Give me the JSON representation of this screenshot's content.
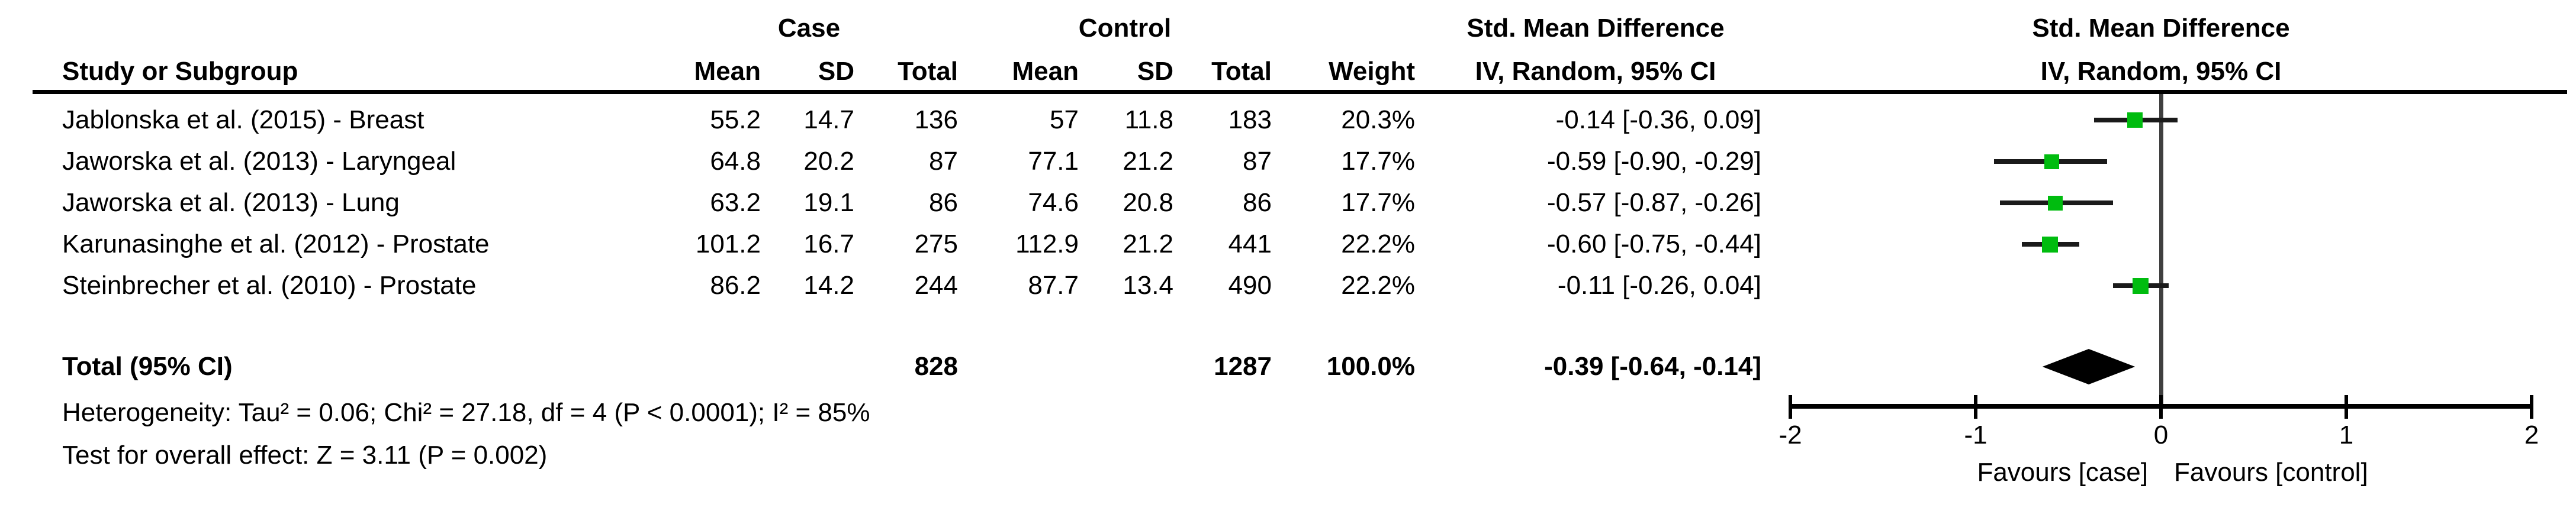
{
  "table": {
    "headers": {
      "study": "Study or Subgroup",
      "case_group": "Case",
      "control_group": "Control",
      "mean": "Mean",
      "sd": "SD",
      "total": "Total",
      "weight": "Weight",
      "smd_title": "Std. Mean Difference",
      "smd_method": "IV, Random, 95% CI"
    },
    "total_row": {
      "label": "Total (95% CI)",
      "case_total": "828",
      "control_total": "1287",
      "weight": "100.0%",
      "smd_ci": "-0.39 [-0.64, -0.14]"
    },
    "footnotes": {
      "heterogeneity": "Heterogeneity: Tau² = 0.06; Chi² = 27.18, df = 4 (P < 0.0001); I² = 85%",
      "overall_effect": "Test for overall effect: Z = 3.11 (P = 0.002)"
    }
  },
  "chart_data": {
    "type": "forest",
    "effect_measure": "Std. Mean Difference",
    "model": "IV, Random, 95% CI",
    "studies": [
      {
        "name": "Jablonska et al. (2015) - Breast",
        "case_mean": "55.2",
        "case_sd": "14.7",
        "case_total": "136",
        "control_mean": "57",
        "control_sd": "11.8",
        "control_total": "183",
        "weight": "20.3%",
        "weight_pct": 20.3,
        "ci_text": "-0.14 [-0.36, 0.09]",
        "est": -0.14,
        "lo": -0.36,
        "hi": 0.09
      },
      {
        "name": "Jaworska et al. (2013) - Laryngeal",
        "case_mean": "64.8",
        "case_sd": "20.2",
        "case_total": "87",
        "control_mean": "77.1",
        "control_sd": "21.2",
        "control_total": "87",
        "weight": "17.7%",
        "weight_pct": 17.7,
        "ci_text": "-0.59 [-0.90, -0.29]",
        "est": -0.59,
        "lo": -0.9,
        "hi": -0.29
      },
      {
        "name": "Jaworska et al. (2013) - Lung",
        "case_mean": "63.2",
        "case_sd": "19.1",
        "case_total": "86",
        "control_mean": "74.6",
        "control_sd": "20.8",
        "control_total": "86",
        "weight": "17.7%",
        "weight_pct": 17.7,
        "ci_text": "-0.57 [-0.87, -0.26]",
        "est": -0.57,
        "lo": -0.87,
        "hi": -0.26
      },
      {
        "name": "Karunasinghe et al. (2012) - Prostate",
        "case_mean": "101.2",
        "case_sd": "16.7",
        "case_total": "275",
        "control_mean": "112.9",
        "control_sd": "21.2",
        "control_total": "441",
        "weight": "22.2%",
        "weight_pct": 22.2,
        "ci_text": "-0.60 [-0.75, -0.44]",
        "est": -0.6,
        "lo": -0.75,
        "hi": -0.44
      },
      {
        "name": "Steinbrecher et al. (2010) - Prostate",
        "case_mean": "86.2",
        "case_sd": "14.2",
        "case_total": "244",
        "control_mean": "87.7",
        "control_sd": "13.4",
        "control_total": "490",
        "weight": "22.2%",
        "weight_pct": 22.2,
        "ci_text": "-0.11 [-0.26, 0.04]",
        "est": -0.11,
        "lo": -0.26,
        "hi": 0.04
      }
    ],
    "total": {
      "est": -0.39,
      "lo": -0.64,
      "hi": -0.14
    },
    "axis": {
      "xlim": [
        -2,
        2
      ],
      "ticks": [
        -2,
        -1,
        0,
        1,
        2
      ],
      "tick_labels": [
        "-2",
        "-1",
        "0",
        "1",
        "2"
      ],
      "favours_left": "Favours [case]",
      "favours_right": "Favours [control]"
    },
    "colors": {
      "marker": "#00bc0f",
      "diamond": "#000000",
      "ci_line": "#1a1a1a",
      "zero_line": "#3f3f3f",
      "axis": "#000000",
      "text": "#000000"
    }
  }
}
